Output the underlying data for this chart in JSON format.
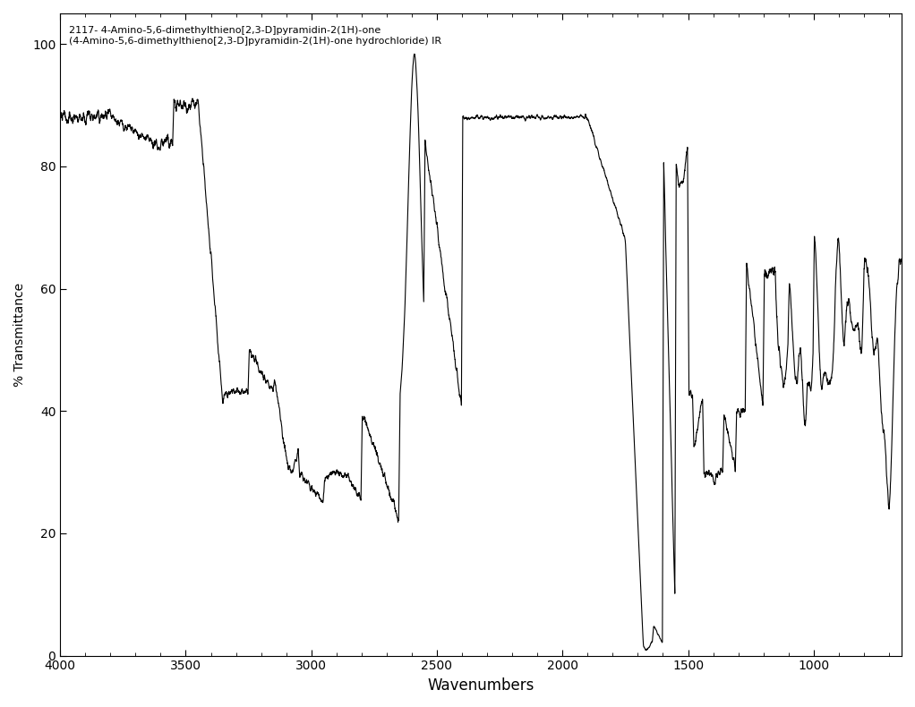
{
  "title_line1": "2117- 4-Amino-5,6-dimethylthieno[2,3-D]pyramidin-2(1H)-one",
  "title_line2": "(4-Amino-5,6-dimethylthieno[2,3-D]pyramidin-2(1H)-one hydrochloride) IR",
  "xlabel": "Wavenumbers",
  "ylabel": "% Transmittance",
  "xlim": [
    4000,
    650
  ],
  "ylim": [
    0,
    105
  ],
  "xticks": [
    4000,
    3500,
    3000,
    2500,
    2000,
    1500,
    1000
  ],
  "yticks": [
    0,
    20,
    40,
    60,
    80,
    100
  ],
  "background_color": "#ffffff",
  "line_color": "#000000",
  "figsize": [
    10.22,
    7.9
  ],
  "dpi": 100
}
